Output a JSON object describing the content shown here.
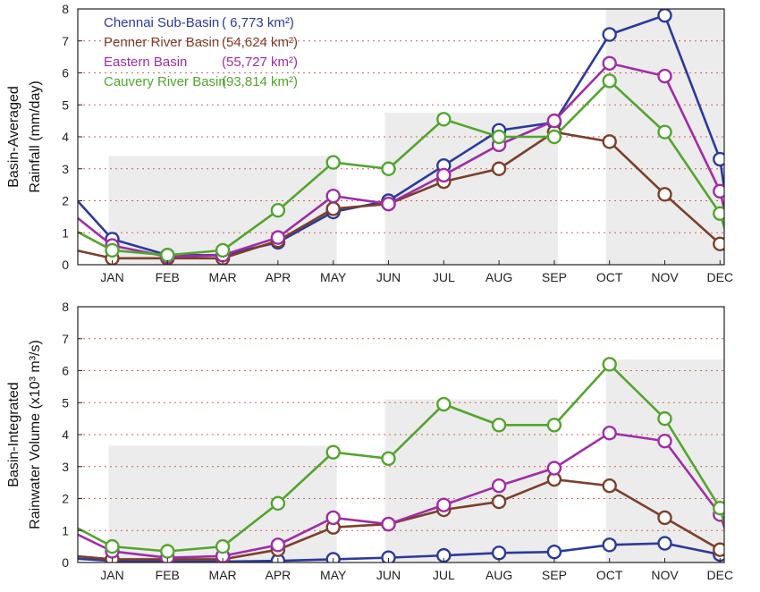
{
  "chart_data": [
    {
      "type": "line",
      "ylabel_lines": [
        "Basin-Averaged",
        "Rainfall (mm/day)"
      ],
      "ylim": [
        0,
        8
      ],
      "yticks": [
        0,
        1,
        2,
        3,
        4,
        5,
        6,
        7,
        8
      ],
      "categories": [
        "JAN",
        "FEB",
        "MAR",
        "APR",
        "MAY",
        "JUN",
        "JUL",
        "AUG",
        "SEP",
        "OCT",
        "NOV",
        "DEC"
      ],
      "grid": "dotted horizontal lines",
      "legend_position": "top-left",
      "shaded_seasons": [
        {
          "from": 0,
          "to": 4,
          "level": 3.4
        },
        {
          "from": 5,
          "to": 8,
          "level": 4.75
        },
        {
          "from": 9,
          "to": 11,
          "level": 8
        }
      ],
      "series": [
        {
          "name": "Chennai Sub-Basin",
          "area": "( 6,773 km²)",
          "color": "#2b3a9a",
          "values": [
            0.8,
            0.3,
            0.3,
            0.7,
            1.65,
            2.0,
            3.1,
            4.2,
            4.45,
            7.2,
            7.8,
            3.3
          ],
          "edges": [
            2.05,
            2.0
          ]
        },
        {
          "name": "Penner River Basin",
          "area": "(54,624 km²)",
          "color": "#7b3f2a",
          "values": [
            0.2,
            0.2,
            0.2,
            0.75,
            1.75,
            1.9,
            2.6,
            3.0,
            4.15,
            3.85,
            2.2,
            0.65
          ],
          "edges": [
            0.45,
            0.4
          ]
        },
        {
          "name": "Eastern Basin",
          "area": "(55,727 km²)",
          "color": "#a02ca6",
          "values": [
            0.6,
            0.25,
            0.3,
            0.85,
            2.15,
            1.9,
            2.8,
            3.75,
            4.5,
            6.3,
            5.9,
            2.3
          ],
          "edges": [
            1.5,
            1.5
          ]
        },
        {
          "name": "Cauvery River Basin",
          "area": "(93,814 km²)",
          "color": "#52a52e",
          "values": [
            0.45,
            0.3,
            0.45,
            1.7,
            3.2,
            3.0,
            4.55,
            4.0,
            4.0,
            5.75,
            4.15,
            1.6
          ],
          "edges": [
            1.05,
            1.0
          ]
        }
      ]
    },
    {
      "type": "line",
      "ylabel_lines": [
        "Basin-Integrated",
        "Rainwater Volume (x10³ m³/s)"
      ],
      "ylim": [
        0,
        8
      ],
      "yticks": [
        0,
        1,
        2,
        3,
        4,
        5,
        6,
        7,
        8
      ],
      "categories": [
        "JAN",
        "FEB",
        "MAR",
        "APR",
        "MAY",
        "JUN",
        "JUL",
        "AUG",
        "SEP",
        "OCT",
        "NOV",
        "DEC"
      ],
      "grid": "dotted horizontal lines",
      "shaded_seasons": [
        {
          "from": 0,
          "to": 4,
          "level": 3.65
        },
        {
          "from": 5,
          "to": 8,
          "level": 5.1
        },
        {
          "from": 9,
          "to": 11,
          "level": 6.35
        }
      ],
      "series": [
        {
          "name": "Chennai Sub-Basin",
          "color": "#2b3a9a",
          "values": [
            0.05,
            0.03,
            0.03,
            0.05,
            0.1,
            0.15,
            0.22,
            0.3,
            0.33,
            0.55,
            0.6,
            0.25
          ],
          "edges": [
            0.12,
            0.12
          ]
        },
        {
          "name": "Penner River Basin",
          "color": "#7b3f2a",
          "values": [
            0.1,
            0.1,
            0.1,
            0.4,
            1.1,
            1.2,
            1.65,
            1.9,
            2.6,
            2.4,
            1.4,
            0.4
          ],
          "edges": [
            0.2,
            0.2
          ]
        },
        {
          "name": "Eastern Basin",
          "color": "#a02ca6",
          "values": [
            0.35,
            0.15,
            0.2,
            0.55,
            1.4,
            1.2,
            1.8,
            2.4,
            2.95,
            4.05,
            3.8,
            1.5
          ],
          "edges": [
            0.9,
            0.95
          ]
        },
        {
          "name": "Cauvery River Basin",
          "color": "#52a52e",
          "values": [
            0.5,
            0.35,
            0.5,
            1.85,
            3.45,
            3.25,
            4.95,
            4.3,
            4.3,
            6.2,
            4.5,
            1.7
          ],
          "edges": [
            1.1,
            1.05
          ]
        }
      ]
    }
  ]
}
